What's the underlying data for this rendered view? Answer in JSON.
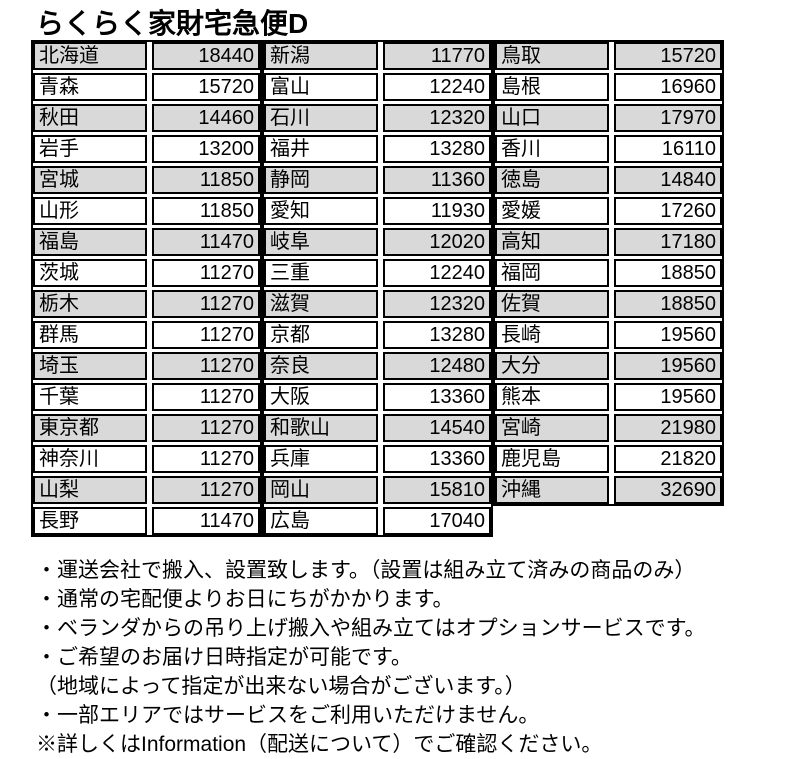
{
  "title": "らくらく家財宅急便D",
  "table": {
    "groups": [
      {
        "rows": [
          {
            "pref": "北海道",
            "price": "18440"
          },
          {
            "pref": "青森",
            "price": "15720"
          },
          {
            "pref": "秋田",
            "price": "14460"
          },
          {
            "pref": "岩手",
            "price": "13200"
          },
          {
            "pref": "宮城",
            "price": "11850"
          },
          {
            "pref": "山形",
            "price": "11850"
          },
          {
            "pref": "福島",
            "price": "11470"
          },
          {
            "pref": "茨城",
            "price": "11270"
          },
          {
            "pref": "栃木",
            "price": "11270"
          },
          {
            "pref": "群馬",
            "price": "11270"
          },
          {
            "pref": "埼玉",
            "price": "11270"
          },
          {
            "pref": "千葉",
            "price": "11270"
          },
          {
            "pref": "東京都",
            "price": "11270"
          },
          {
            "pref": "神奈川",
            "price": "11270"
          },
          {
            "pref": "山梨",
            "price": "11270"
          },
          {
            "pref": "長野",
            "price": "11470"
          }
        ]
      },
      {
        "rows": [
          {
            "pref": "新潟",
            "price": "11770"
          },
          {
            "pref": "富山",
            "price": "12240"
          },
          {
            "pref": "石川",
            "price": "12320"
          },
          {
            "pref": "福井",
            "price": "13280"
          },
          {
            "pref": "静岡",
            "price": "11360"
          },
          {
            "pref": "愛知",
            "price": "11930"
          },
          {
            "pref": "岐阜",
            "price": "12020"
          },
          {
            "pref": "三重",
            "price": "12240"
          },
          {
            "pref": "滋賀",
            "price": "12320"
          },
          {
            "pref": "京都",
            "price": "13280"
          },
          {
            "pref": "奈良",
            "price": "12480"
          },
          {
            "pref": "大阪",
            "price": "13360"
          },
          {
            "pref": "和歌山",
            "price": "14540"
          },
          {
            "pref": "兵庫",
            "price": "13360"
          },
          {
            "pref": "岡山",
            "price": "15810"
          },
          {
            "pref": "広島",
            "price": "17040"
          }
        ]
      },
      {
        "rows": [
          {
            "pref": "鳥取",
            "price": "15720"
          },
          {
            "pref": "島根",
            "price": "16960"
          },
          {
            "pref": "山口",
            "price": "17970"
          },
          {
            "pref": "香川",
            "price": "16110"
          },
          {
            "pref": "徳島",
            "price": "14840"
          },
          {
            "pref": "愛媛",
            "price": "17260"
          },
          {
            "pref": "高知",
            "price": "17180"
          },
          {
            "pref": "福岡",
            "price": "18850"
          },
          {
            "pref": "佐賀",
            "price": "18850"
          },
          {
            "pref": "長崎",
            "price": "19560"
          },
          {
            "pref": "大分",
            "price": "19560"
          },
          {
            "pref": "熊本",
            "price": "19560"
          },
          {
            "pref": "宮崎",
            "price": "21980"
          },
          {
            "pref": "鹿児島",
            "price": "21820"
          },
          {
            "pref": "沖縄",
            "price": "32690"
          }
        ]
      }
    ]
  },
  "notes": [
    "・運送会社で搬入、設置致します。（設置は組み立て済みの商品のみ）",
    "・通常の宅配便よりお日にちがかかります。",
    "・ベランダからの吊り上げ搬入や組み立てはオプションサービスです。",
    "・ご希望のお届け日時指定が可能です。",
    "（地域によって指定が出来ない場合がございます。）",
    "・一部エリアではサービスをご利用いただけません。",
    "※詳しくはInformation（配送について）でご確認ください。"
  ],
  "colors": {
    "row_shaded": "#d9d9d9",
    "row_plain": "#ffffff",
    "border": "#000000"
  }
}
